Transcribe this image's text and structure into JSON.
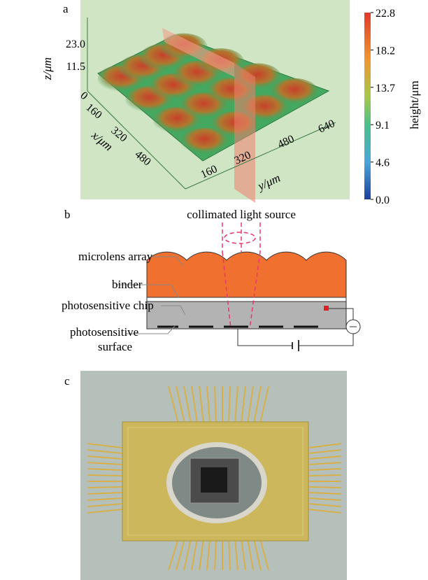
{
  "panel_a": {
    "label": "a",
    "z_axis": {
      "title": "z/μm",
      "ticks": [
        "11.5",
        "23.0"
      ]
    },
    "x_axis": {
      "title": "x/μm",
      "ticks": [
        "0",
        "160",
        "320",
        "480"
      ]
    },
    "y_axis": {
      "title": "y/μm",
      "ticks": [
        "160",
        "320",
        "480",
        "640"
      ]
    },
    "colorbar": {
      "title": "height/μm",
      "ticks": [
        "0.0",
        "4.6",
        "9.1",
        "13.7",
        "18.2",
        "22.8"
      ]
    }
  },
  "panel_b": {
    "label": "b",
    "source": "collimated light source",
    "labels": {
      "microlens": "microlens array",
      "binder": "binder",
      "chip": "photosensitive chip",
      "surface": [
        "photosensitive",
        "surface"
      ]
    }
  },
  "panel_c": {
    "label": "c"
  }
}
